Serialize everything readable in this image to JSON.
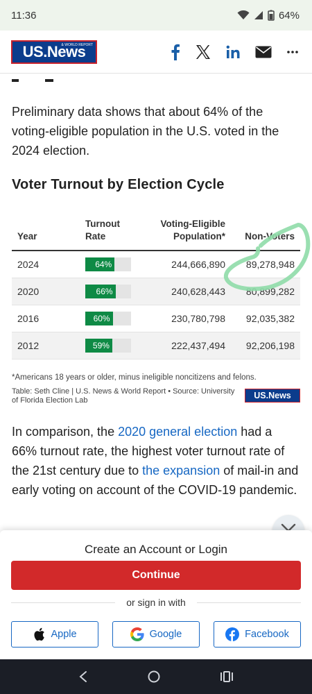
{
  "status_bar": {
    "time": "11:36",
    "battery": "64%"
  },
  "header": {
    "logo_text": "US.News",
    "logo_small": "& WORLD REPORT",
    "share_icons": [
      "facebook-icon",
      "x-icon",
      "linkedin-icon",
      "email-icon",
      "more-icon"
    ]
  },
  "article": {
    "paragraph1": "Preliminary data shows that about 64% of the voting-eligible population in the U.S. voted in the 2024 election.",
    "section_title": "Voter Turnout by Election Cycle",
    "paragraph2": {
      "part1": "In comparison, the ",
      "link1": "2020 general election",
      "part2": " had a 66% turnout rate, the highest voter turnout rate of the 21st century due to ",
      "link2": "the expansion",
      "part3": " of mail-in and early voting on account of the COVID-19 pandemic."
    }
  },
  "table": {
    "headers": {
      "year": "Year",
      "turnout": "Turnout Rate",
      "eligible": "Voting-Eligible Population*",
      "nonvoters": "Non-Voters"
    },
    "rows": [
      {
        "year": "2024",
        "turnout": "64%",
        "turnout_value": 64,
        "eligible": "244,666,890",
        "nonvoters": "89,278,948"
      },
      {
        "year": "2020",
        "turnout": "66%",
        "turnout_value": 66,
        "eligible": "240,628,443",
        "nonvoters": "80,899,282"
      },
      {
        "year": "2016",
        "turnout": "60%",
        "turnout_value": 60,
        "eligible": "230,780,798",
        "nonvoters": "92,035,382"
      },
      {
        "year": "2012",
        "turnout": "59%",
        "turnout_value": 59,
        "eligible": "222,437,494",
        "nonvoters": "92,206,198"
      }
    ],
    "footnote": "*Americans 18 years or older, minus ineligible noncitizens and felons.",
    "source": "Table: Seth Cline | U.S. News & World Report • Source: University of Florida Election Lab",
    "source_logo": "US.News"
  },
  "login_sheet": {
    "title": "Create an Account or Login",
    "continue_label": "Continue",
    "or_text": "or sign in with",
    "apple_label": "Apple",
    "google_label": "Google",
    "facebook_label": "Facebook"
  },
  "colors": {
    "brand_blue": "#0b3c8c",
    "brand_red": "#c8202a",
    "bar_green": "#0e8a45",
    "continue_red": "#d2292a",
    "link_blue": "#1667c3",
    "annotation_green": "#8fdca8"
  }
}
